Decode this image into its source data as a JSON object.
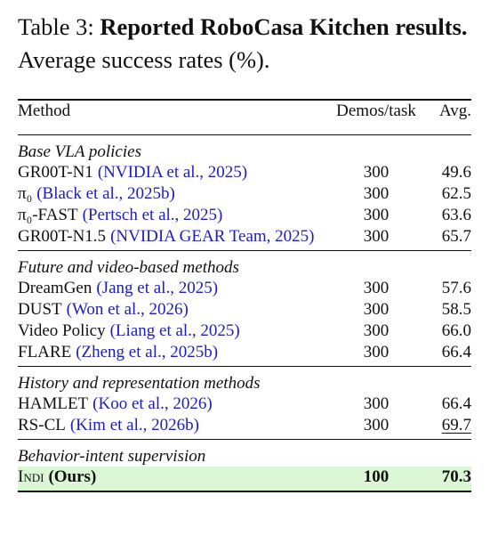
{
  "caption": {
    "label": "Table 3:",
    "title": "Reported RoboCasa Kitchen re­sults.",
    "text": "Average success rates (%)."
  },
  "table": {
    "columns": [
      "Method",
      "Demos/task",
      "Avg."
    ],
    "groups": [
      {
        "name": "Base VLA policies",
        "rows": [
          {
            "method": "GR00T-N1",
            "citation": "(NVIDIA et al., 2025)",
            "demos": "300",
            "avg": "49.6"
          },
          {
            "method": "π₀",
            "citation": "(Black et al., 2025b)",
            "demos": "300",
            "avg": "62.5"
          },
          {
            "method": "π₀-FAST",
            "citation": "(Pertsch et al., 2025)",
            "demos": "300",
            "avg": "63.6"
          },
          {
            "method": "GR00T-N1.5",
            "citation": "(NVIDIA GEAR Team, 2025)",
            "demos": "300",
            "avg": "65.7"
          }
        ]
      },
      {
        "name": "Future and video-based methods",
        "rows": [
          {
            "method": "DreamGen",
            "citation": "(Jang et al., 2025)",
            "demos": "300",
            "avg": "57.6"
          },
          {
            "method": "DUST",
            "citation": "(Won et al., 2026)",
            "demos": "300",
            "avg": "58.5"
          },
          {
            "method": "Video Policy",
            "citation": "(Liang et al., 2025)",
            "demos": "300",
            "avg": "66.0"
          },
          {
            "method": "FLARE",
            "citation": "(Zheng et al., 2025b)",
            "demos": "300",
            "avg": "66.4"
          }
        ]
      },
      {
        "name": "History and representation methods",
        "rows": [
          {
            "method": "HAMLET",
            "citation": "(Koo et al., 2026)",
            "demos": "300",
            "avg": "66.4"
          },
          {
            "method": "RS-CL",
            "citation": "(Kim et al., 2026b)",
            "demos": "300",
            "avg": "69.7",
            "underline": true
          }
        ]
      },
      {
        "name": "Behavior-intent supervision",
        "rows": [
          {
            "method": "Indi",
            "note": "(Ours)",
            "demos": "100",
            "avg": "70.3",
            "bold": true,
            "smallcaps": true,
            "highlight": "#dcf7d5"
          }
        ]
      }
    ]
  }
}
